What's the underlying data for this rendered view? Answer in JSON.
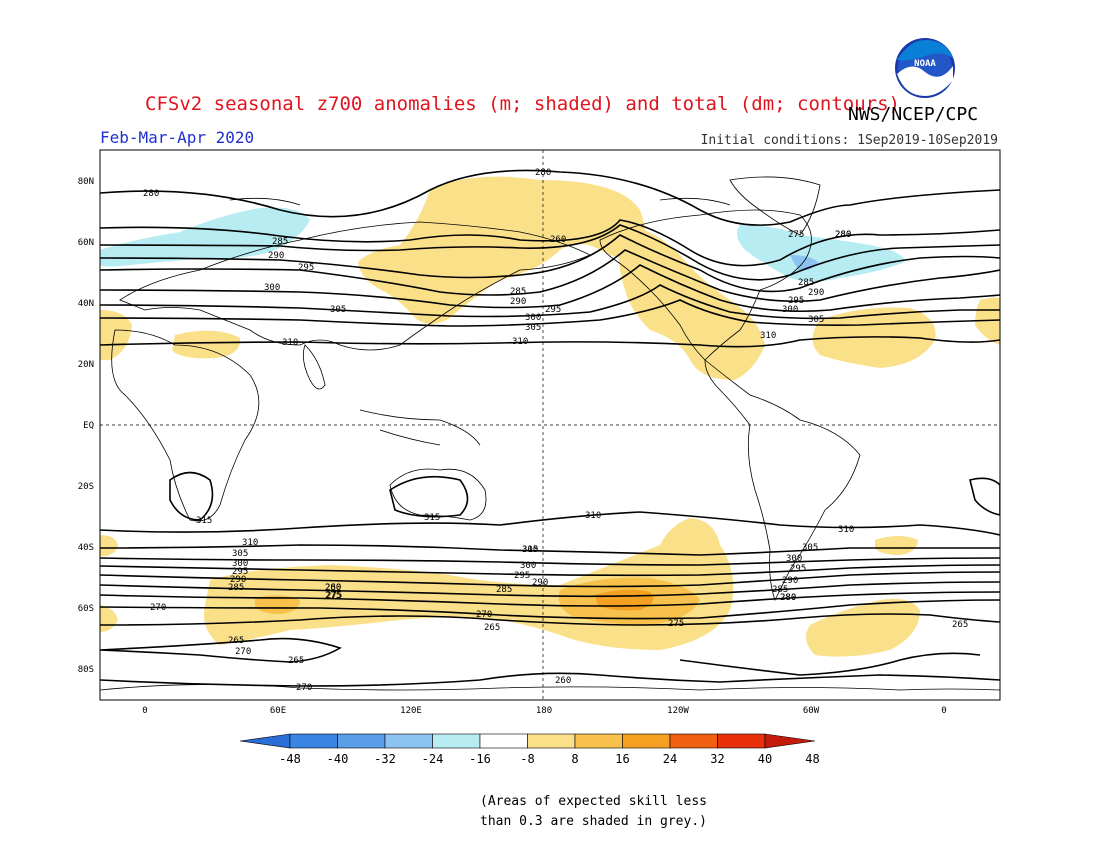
{
  "header": {
    "title": "CFSv2 seasonal z700 anomalies (m; shaded) and total (dm; contours)",
    "agency": "NWS/NCEP/CPC",
    "season": "Feb-Mar-Apr 2020",
    "initial_conditions": "Initial conditions: 1Sep2019-10Sep2019",
    "logo_text": "NOAA"
  },
  "axes": {
    "lat_labels": [
      "80N",
      "60N",
      "40N",
      "20N",
      "EQ",
      "20S",
      "40S",
      "60S",
      "80S"
    ],
    "lon_labels": [
      "0",
      "60E",
      "120E",
      "180",
      "120W",
      "60W",
      "0"
    ]
  },
  "colorbar": {
    "labels": [
      "-48",
      "-40",
      "-32",
      "-24",
      "-16",
      "-8",
      "8",
      "16",
      "24",
      "32",
      "40",
      "48"
    ],
    "colors": [
      "#2a6fd6",
      "#3a85e4",
      "#5a9ee8",
      "#8cc3f0",
      "#b6ecf2",
      "#ffffff",
      "#fbe08a",
      "#f7c14c",
      "#f4a021",
      "#f06012",
      "#e8300a",
      "#c41a0a"
    ]
  },
  "footnote": {
    "line1": "(Areas of expected skill less",
    "line2": "than 0.3 are shaded in grey.)"
  },
  "contours": {
    "labels": [
      "280",
      "285",
      "290",
      "295",
      "300",
      "305",
      "310",
      "280",
      "260",
      "280",
      "285",
      "290",
      "295",
      "300",
      "305",
      "310",
      "275",
      "280",
      "285",
      "290",
      "295",
      "300",
      "305",
      "310",
      "315",
      "315",
      "310",
      "310",
      "305",
      "300",
      "295",
      "290",
      "285",
      "280",
      "275",
      "270",
      "265",
      "260",
      "270",
      "265",
      "270",
      "275",
      "280",
      "285",
      "290",
      "295",
      "300",
      "305",
      "310",
      "310",
      "305",
      "300",
      "295",
      "290",
      "285",
      "280",
      "270",
      "265",
      "260",
      "265",
      "275"
    ]
  }
}
